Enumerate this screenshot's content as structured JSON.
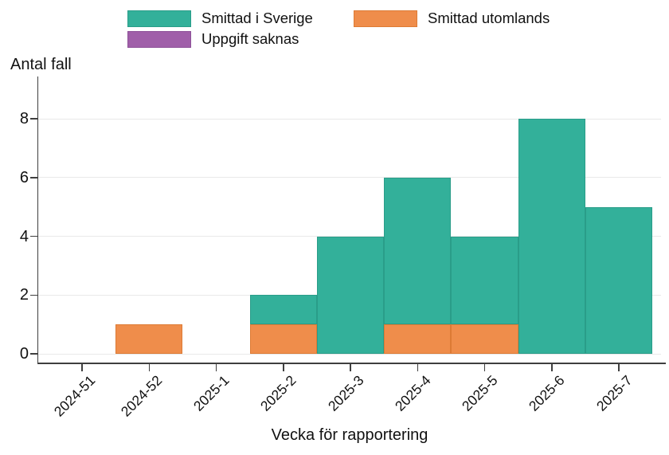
{
  "legend": {
    "items": [
      {
        "label": "Smittad i Sverige",
        "color": "#33b09a",
        "border_color": "#2a9d89"
      },
      {
        "label": "Smittad utomlands",
        "color": "#ef8d4b",
        "border_color": "#dd7b35"
      },
      {
        "label": "Uppgift saknas",
        "color": "#a05fa9",
        "border_color": "#8e5299"
      }
    ]
  },
  "chart_data": {
    "type": "bar",
    "stacked": true,
    "title": "",
    "xlabel": "Vecka för rapportering",
    "ylabel": "Antal fall",
    "categories": [
      "2024-51",
      "2024-52",
      "2025-1",
      "2025-2",
      "2025-3",
      "2025-4",
      "2025-5",
      "2025-6",
      "2025-7"
    ],
    "series": [
      {
        "name": "Smittad i Sverige",
        "color": "#33b09a",
        "border_color": "#2a9d89",
        "values": [
          0,
          0,
          0,
          1,
          4,
          5,
          3,
          8,
          5
        ]
      },
      {
        "name": "Smittad utomlands",
        "color": "#ef8d4b",
        "border_color": "#dd7b35",
        "values": [
          0,
          1,
          0,
          1,
          0,
          1,
          1,
          0,
          0
        ]
      },
      {
        "name": "Uppgift saknas",
        "color": "#a05fa9",
        "border_color": "#8e5299",
        "values": [
          0,
          0,
          0,
          0,
          0,
          0,
          0,
          0,
          0
        ]
      }
    ],
    "stack_order_bottom_to_top": [
      "Smittad utomlands",
      "Smittad i Sverige",
      "Uppgift saknas"
    ],
    "totals": [
      0,
      1,
      0,
      2,
      4,
      6,
      4,
      8,
      5
    ],
    "y_ticks": [
      0,
      2,
      4,
      6,
      8
    ],
    "ylim": [
      0,
      9.45
    ],
    "grid": "horizontal-light",
    "legend_position": "top-center",
    "x_tick_angle_deg": 45
  },
  "colors": {
    "axis": "#3f3f3f",
    "grid": "#e9e9e9",
    "text": "#111111",
    "background": "#ffffff"
  }
}
